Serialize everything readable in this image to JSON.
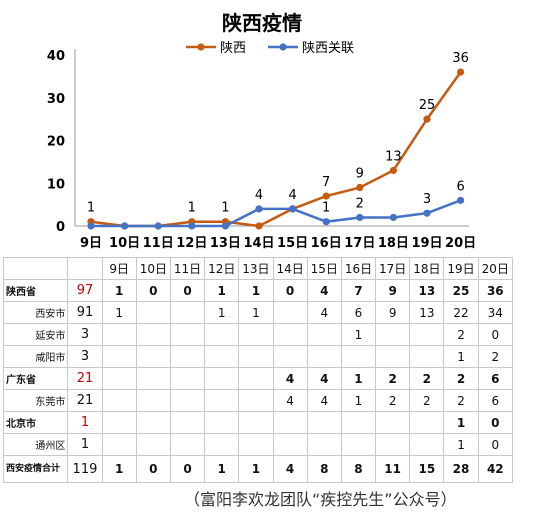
{
  "chart_data": {
    "type": "line",
    "title": "陕西疫情",
    "categories": [
      "9日",
      "10日",
      "11日",
      "12日",
      "13日",
      "14日",
      "15日",
      "16日",
      "17日",
      "18日",
      "19日",
      "20日"
    ],
    "series": [
      {
        "name": "陕西",
        "values": [
          1,
          0,
          0,
          1,
          1,
          0,
          4,
          7,
          9,
          13,
          25,
          36
        ],
        "color": "#c55a11"
      },
      {
        "name": "陕西关联",
        "values": [
          0,
          0,
          0,
          0,
          0,
          4,
          4,
          1,
          2,
          2,
          3,
          6
        ],
        "color": "#4472c4"
      }
    ],
    "data_labels": {
      "陕西": [
        "1",
        "",
        "",
        "1",
        "1",
        "",
        "4",
        "7",
        "9",
        "13",
        "25",
        "36"
      ],
      "陕西关联": [
        "",
        "",
        "",
        "",
        "",
        "4",
        "",
        "1",
        "2",
        "",
        "3",
        "6"
      ]
    },
    "ylim": [
      0,
      40
    ],
    "yticks": [
      0,
      10,
      20,
      30,
      40
    ],
    "legend": "top",
    "grid": false
  },
  "table": {
    "header": [
      "",
      "",
      "9日",
      "10日",
      "11日",
      "12日",
      "13日",
      "14日",
      "15日",
      "16日",
      "17日",
      "18日",
      "19日",
      "20日"
    ],
    "rows": [
      {
        "name": "陕西省",
        "total": "97",
        "kind": "prov",
        "vals": [
          "1",
          "0",
          "0",
          "1",
          "1",
          "0",
          "4",
          "7",
          "9",
          "13",
          "25",
          "36"
        ]
      },
      {
        "name": "西安市",
        "total": "91",
        "kind": "sub",
        "vals": [
          "1",
          "",
          "",
          "1",
          "1",
          "",
          "4",
          "6",
          "9",
          "13",
          "22",
          "34"
        ]
      },
      {
        "name": "延安市",
        "total": "3",
        "kind": "sub",
        "vals": [
          "",
          "",
          "",
          "",
          "",
          "",
          "",
          "1",
          "",
          "",
          "2",
          "0"
        ]
      },
      {
        "name": "咸阳市",
        "total": "3",
        "kind": "sub",
        "vals": [
          "",
          "",
          "",
          "",
          "",
          "",
          "",
          "",
          "",
          "",
          "1",
          "2"
        ]
      },
      {
        "name": "广东省",
        "total": "21",
        "kind": "prov",
        "vals": [
          "",
          "",
          "",
          "",
          "",
          "4",
          "4",
          "1",
          "2",
          "2",
          "2",
          "6"
        ]
      },
      {
        "name": "东莞市",
        "total": "21",
        "kind": "sub",
        "vals": [
          "",
          "",
          "",
          "",
          "",
          "4",
          "4",
          "1",
          "2",
          "2",
          "2",
          "6"
        ]
      },
      {
        "name": "北京市",
        "total": "1",
        "kind": "prov",
        "vals": [
          "",
          "",
          "",
          "",
          "",
          "",
          "",
          "",
          "",
          "",
          "1",
          "0"
        ]
      },
      {
        "name": "通州区",
        "total": "1",
        "kind": "sub",
        "vals": [
          "",
          "",
          "",
          "",
          "",
          "",
          "",
          "",
          "",
          "",
          "1",
          "0"
        ]
      },
      {
        "name": "西安疫情合计",
        "total": "119",
        "kind": "total-row",
        "vals": [
          "1",
          "0",
          "0",
          "1",
          "1",
          "4",
          "8",
          "8",
          "11",
          "15",
          "28",
          "42"
        ]
      }
    ]
  },
  "footer": "（富阳李欢龙团队“疾控先生”公众号）"
}
